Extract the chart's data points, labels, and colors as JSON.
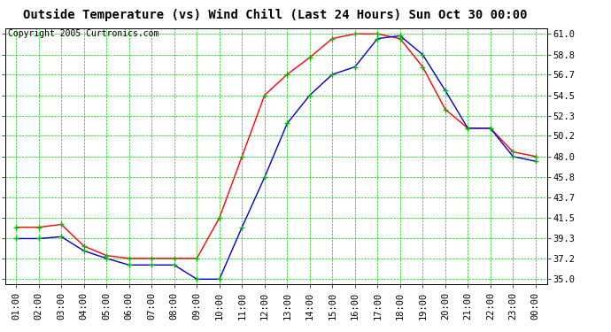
{
  "title": "Outside Temperature (vs) Wind Chill (Last 24 Hours) Sun Oct 30 00:00",
  "copyright": "Copyright 2005 Curtronics.com",
  "x_labels": [
    "01:00",
    "02:00",
    "03:00",
    "04:00",
    "05:00",
    "06:00",
    "07:00",
    "08:00",
    "09:00",
    "10:00",
    "11:00",
    "12:00",
    "13:00",
    "14:00",
    "15:00",
    "16:00",
    "17:00",
    "18:00",
    "19:00",
    "20:00",
    "21:00",
    "22:00",
    "23:00",
    "00:00"
  ],
  "yticks": [
    35.0,
    37.2,
    39.3,
    41.5,
    43.7,
    45.8,
    48.0,
    50.2,
    52.3,
    54.5,
    56.7,
    58.8,
    61.0
  ],
  "ylim": [
    34.5,
    61.6
  ],
  "red_data": [
    40.5,
    40.5,
    40.8,
    38.5,
    37.5,
    37.2,
    37.2,
    37.2,
    37.2,
    41.5,
    48.0,
    54.5,
    56.7,
    58.5,
    60.5,
    61.0,
    61.0,
    60.5,
    57.5,
    53.0,
    51.0,
    51.0,
    48.5,
    48.0
  ],
  "blue_data": [
    39.3,
    39.3,
    39.5,
    38.0,
    37.2,
    36.5,
    36.5,
    36.5,
    35.0,
    35.0,
    40.5,
    45.8,
    51.5,
    54.5,
    56.7,
    57.5,
    60.5,
    60.8,
    58.8,
    55.0,
    51.0,
    51.0,
    48.0,
    47.5
  ],
  "red_color": "#ff0000",
  "blue_color": "#0000cc",
  "green_marker_color": "#00bb00",
  "bg_color": "#ffffff",
  "plot_bg_color": "#ffffff",
  "grid_color": "#00cc00",
  "title_fontsize": 10,
  "tick_fontsize": 7.5,
  "copyright_fontsize": 7
}
